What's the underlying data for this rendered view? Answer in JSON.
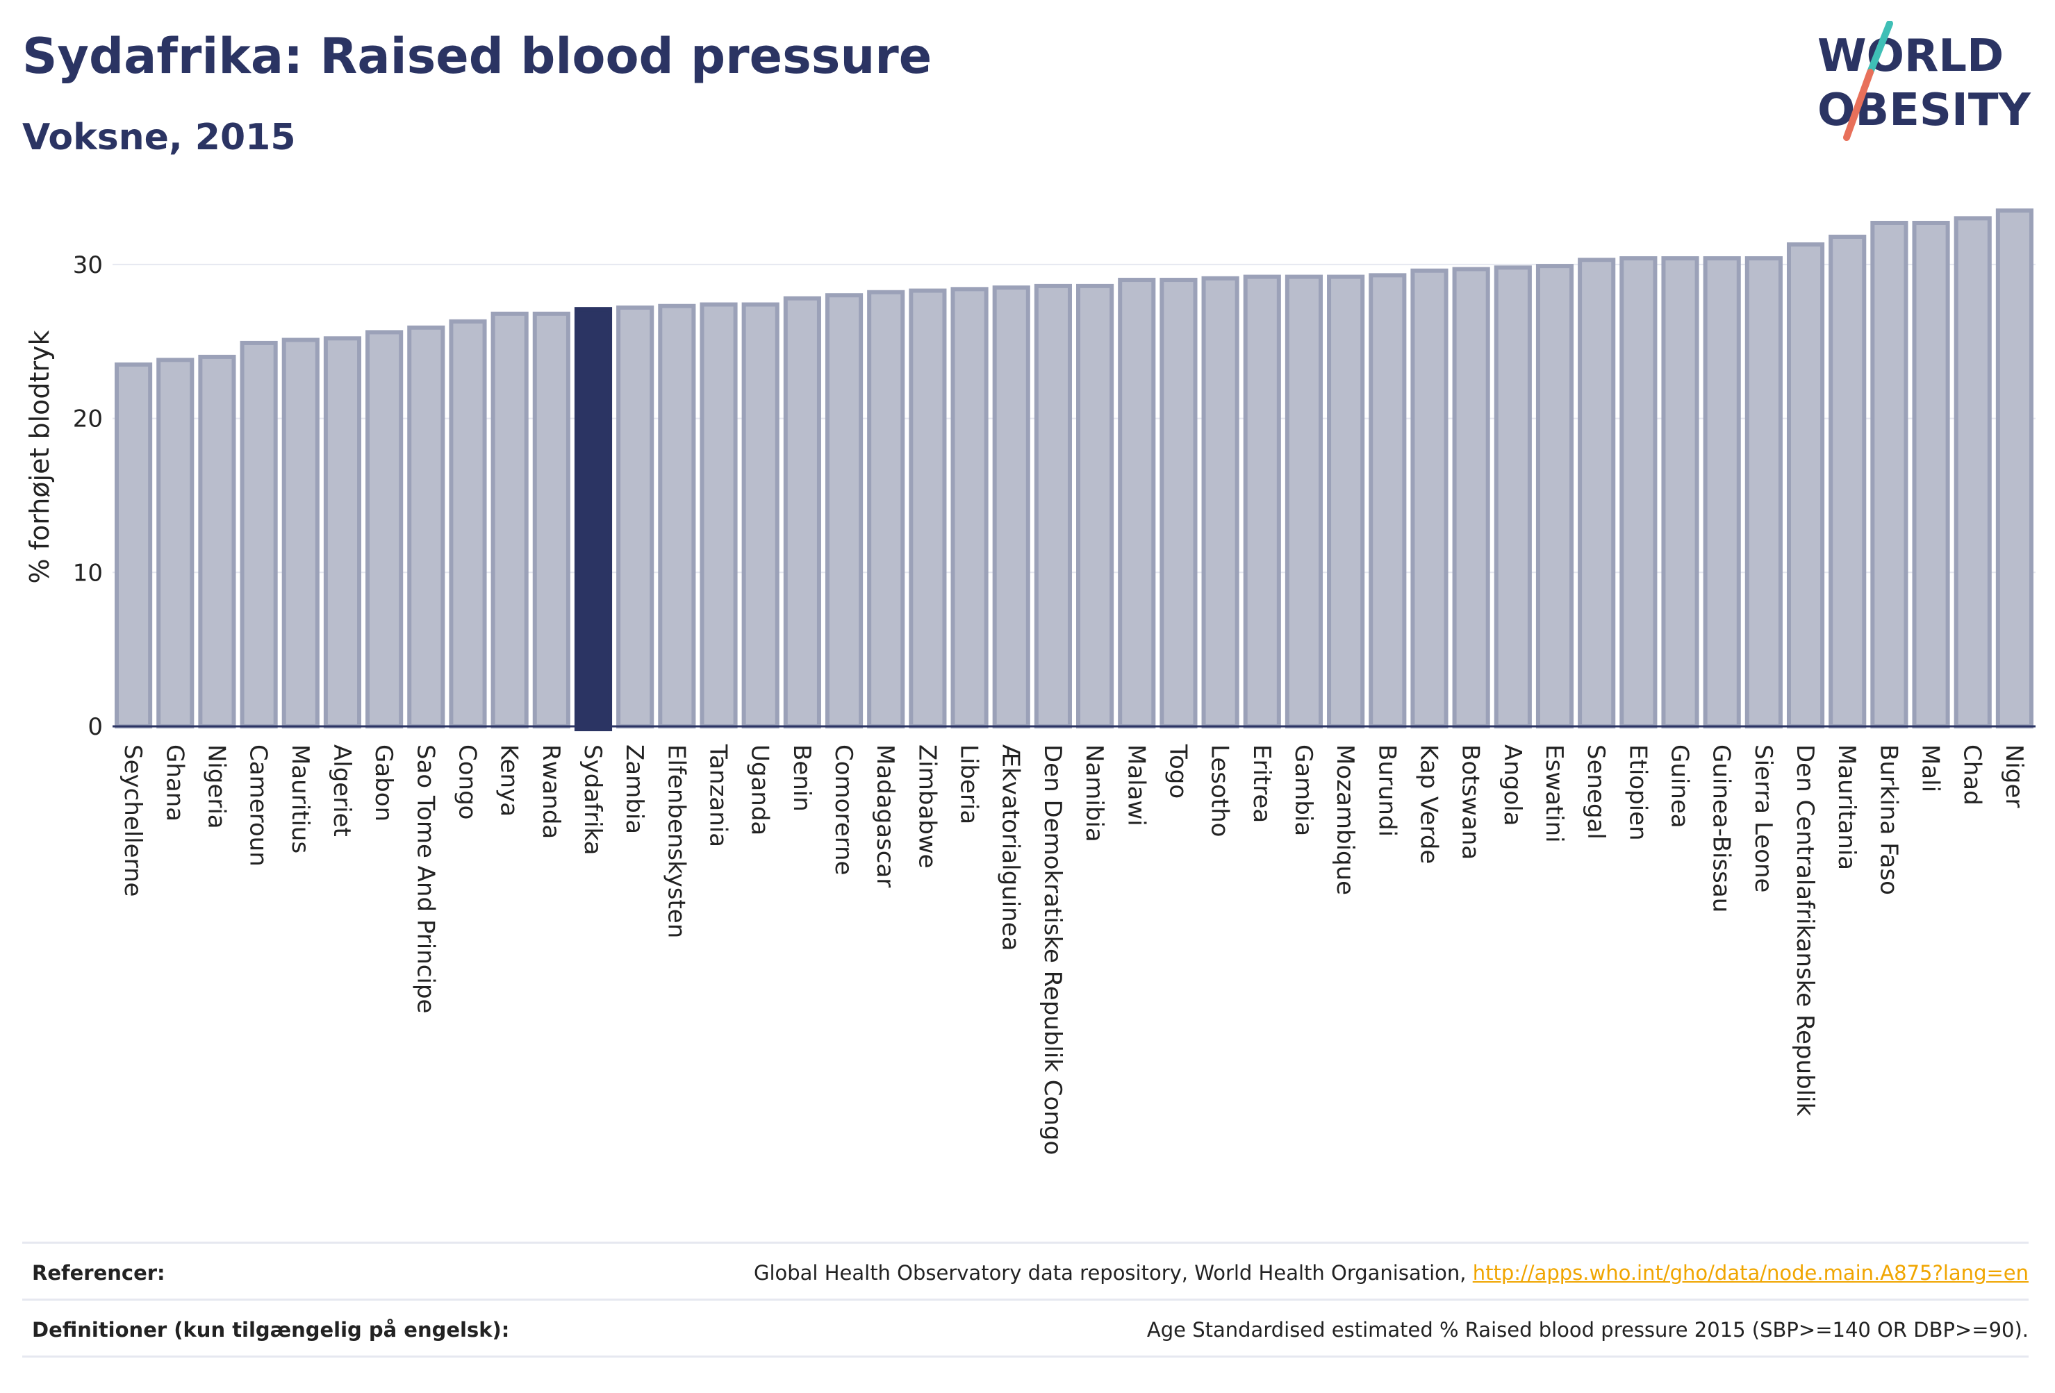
{
  "title": "Sydafrika: Raised blood pressure",
  "subtitle": "Voksne, 2015",
  "logo": {
    "line1": "WORLD",
    "line2": "OBESITY",
    "accent_teal": "#3fbfb6",
    "accent_coral": "#e8705a",
    "text_color": "#2b3463"
  },
  "colors": {
    "bar": "#b9bdcc",
    "bar_stroke": "#9ba1b8",
    "highlight": "#2b3463",
    "axis_text": "#222222",
    "grid": "#e6e8f0"
  },
  "chart_data": {
    "type": "bar",
    "ylabel": "% forhøjet blodtryk",
    "ylim": [
      0,
      35
    ],
    "yticks": [
      0,
      10,
      20,
      30
    ],
    "highlight": "Sydafrika",
    "grid": true,
    "categories": [
      "Seychellerne",
      "Ghana",
      "Nigeria",
      "Cameroun",
      "Mauritius",
      "Algeriet",
      "Gabon",
      "Sao Tome And Principe",
      "Congo",
      "Kenya",
      "Rwanda",
      "Sydafrika",
      "Zambia",
      "Elfenbenskysten",
      "Tanzania",
      "Uganda",
      "Benin",
      "Comorerne",
      "Madagascar",
      "Zimbabwe",
      "Liberia",
      "Ækvatorialguinea",
      "Den Demokratiske Republik Congo",
      "Namibia",
      "Malawi",
      "Togo",
      "Lesotho",
      "Eritrea",
      "Gambia",
      "Mozambique",
      "Burundi",
      "Kap Verde",
      "Botswana",
      "Angola",
      "Eswatini",
      "Senegal",
      "Etiopien",
      "Guinea",
      "Guinea-Bissau",
      "Sierra Leone",
      "Den Centralafrikanske Republik",
      "Mauritania",
      "Burkina Faso",
      "Mali",
      "Chad",
      "Niger"
    ],
    "values": [
      23.5,
      23.8,
      24.0,
      24.9,
      25.1,
      25.2,
      25.6,
      25.9,
      26.3,
      26.8,
      26.8,
      27.1,
      27.2,
      27.3,
      27.4,
      27.4,
      27.8,
      28.0,
      28.2,
      28.3,
      28.4,
      28.5,
      28.6,
      28.6,
      29.0,
      29.0,
      29.1,
      29.2,
      29.2,
      29.2,
      29.3,
      29.6,
      29.7,
      29.8,
      29.9,
      30.3,
      30.4,
      30.4,
      30.4,
      30.4,
      31.3,
      31.8,
      32.7,
      32.7,
      33.0,
      33.5
    ]
  },
  "footer": {
    "ref_label": "Referencer:",
    "ref_text": "Global Health Observatory data repository, World Health Organisation, ",
    "ref_link": "http://apps.who.int/gho/data/node.main.A875?lang=en",
    "def_label": "Definitioner (kun tilgængelig på engelsk):",
    "def_text": "Age Standardised estimated % Raised blood pressure 2015 (SBP>=140 OR DBP>=90)."
  }
}
